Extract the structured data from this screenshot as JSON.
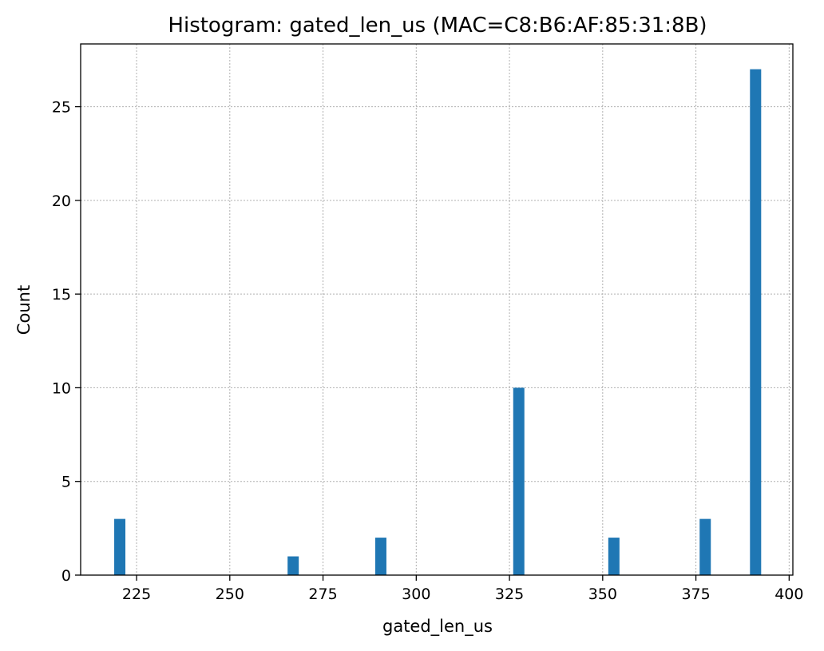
{
  "chart_data": {
    "type": "bar",
    "title": "Histogram: gated_len_us (MAC=C8:B6:AF:85:31:8B)",
    "xlabel": "gated_len_us",
    "ylabel": "Count",
    "xlim": [
      210,
      401
    ],
    "ylim": [
      0,
      28.35
    ],
    "xticks": [
      225,
      250,
      275,
      300,
      325,
      350,
      375,
      400
    ],
    "yticks": [
      0,
      5,
      10,
      15,
      20,
      25
    ],
    "grid": true,
    "bar_color": "#1f77b4",
    "bin_width": 3,
    "bars": [
      {
        "x": 220.5,
        "count": 3
      },
      {
        "x": 267.0,
        "count": 1
      },
      {
        "x": 290.5,
        "count": 2
      },
      {
        "x": 327.5,
        "count": 10
      },
      {
        "x": 353.0,
        "count": 2
      },
      {
        "x": 377.5,
        "count": 3
      },
      {
        "x": 391.0,
        "count": 27
      }
    ]
  }
}
